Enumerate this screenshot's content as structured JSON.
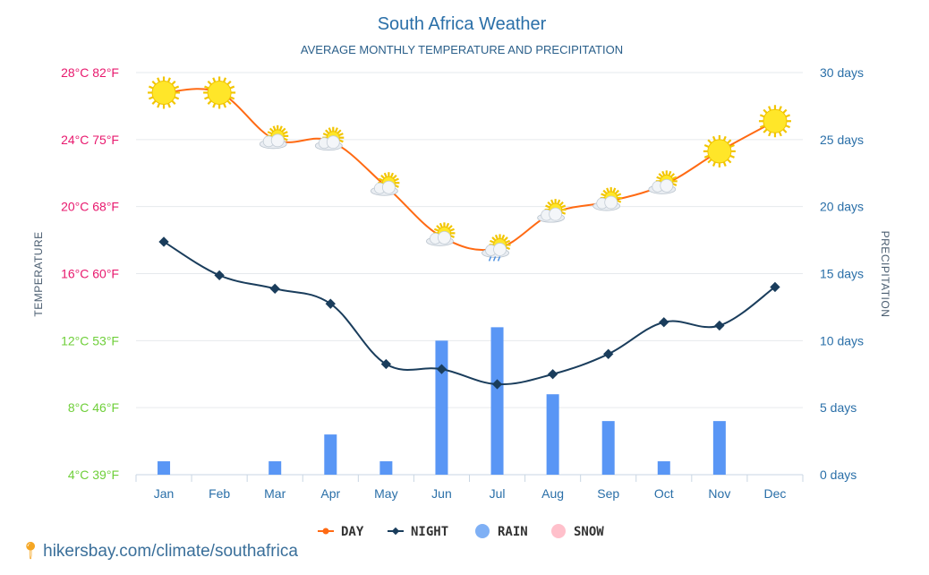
{
  "chart_data": {
    "type": "line",
    "title": "South Africa Weather",
    "subtitle": "AVERAGE MONTHLY TEMPERATURE AND PRECIPITATION",
    "categories": [
      "Jan",
      "Feb",
      "Mar",
      "Apr",
      "May",
      "Jun",
      "Jul",
      "Aug",
      "Sep",
      "Oct",
      "Nov",
      "Dec"
    ],
    "y_left_label": "TEMPERATURE",
    "y_right_label": "PRECIPITATION",
    "y_left_ticks": [
      {
        "value": 28,
        "label": "28°C 82°F",
        "color": "#e8196e"
      },
      {
        "value": 24,
        "label": "24°C 75°F",
        "color": "#e8196e"
      },
      {
        "value": 20,
        "label": "20°C 68°F",
        "color": "#e8196e"
      },
      {
        "value": 16,
        "label": "16°C 60°F",
        "color": "#e8196e"
      },
      {
        "value": 12,
        "label": "12°C 53°F",
        "color": "#6fcf3a"
      },
      {
        "value": 8,
        "label": "8°C 46°F",
        "color": "#6fcf3a"
      },
      {
        "value": 4,
        "label": "4°C 39°F",
        "color": "#6fcf3a"
      }
    ],
    "y_right_ticks": [
      {
        "value": 30,
        "label": "30 days"
      },
      {
        "value": 25,
        "label": "25 days"
      },
      {
        "value": 20,
        "label": "20 days"
      },
      {
        "value": 15,
        "label": "15 days"
      },
      {
        "value": 10,
        "label": "10 days"
      },
      {
        "value": 5,
        "label": "5 days"
      },
      {
        "value": 0,
        "label": "0 days"
      }
    ],
    "ylim_left": [
      4,
      28
    ],
    "ylim_right": [
      0,
      30
    ],
    "series": [
      {
        "name": "DAY",
        "color": "#ff6a13",
        "values": [
          26.8,
          26.8,
          24.0,
          23.9,
          21.2,
          18.2,
          17.5,
          19.6,
          20.3,
          21.3,
          23.3,
          25.1
        ]
      },
      {
        "name": "NIGHT",
        "color": "#1a3d5c",
        "values": [
          17.9,
          15.9,
          15.1,
          14.2,
          10.6,
          10.3,
          9.4,
          10.0,
          11.2,
          13.1,
          12.9,
          15.2
        ]
      },
      {
        "name": "RAIN",
        "color": "#5996f5",
        "values": [
          1,
          0,
          1,
          3,
          1,
          10,
          11,
          6,
          4,
          1,
          4,
          0
        ]
      },
      {
        "name": "SNOW",
        "color": "#ffc0cb",
        "values": [
          0,
          0,
          0,
          0,
          0,
          0,
          0,
          0,
          0,
          0,
          0,
          0
        ]
      }
    ],
    "weather_icons": [
      "sun",
      "sun",
      "sun-cloud",
      "sun-cloud",
      "sun-cloud",
      "sun-cloud",
      "sun-cloud-rain",
      "sun-cloud",
      "sun-cloud",
      "sun-cloud",
      "sun",
      "sun"
    ],
    "legend_placement": "bottom-center",
    "grid": true
  },
  "source": {
    "icon": "location-pin-icon",
    "text": "hikersbay.com/climate/southafrica"
  }
}
